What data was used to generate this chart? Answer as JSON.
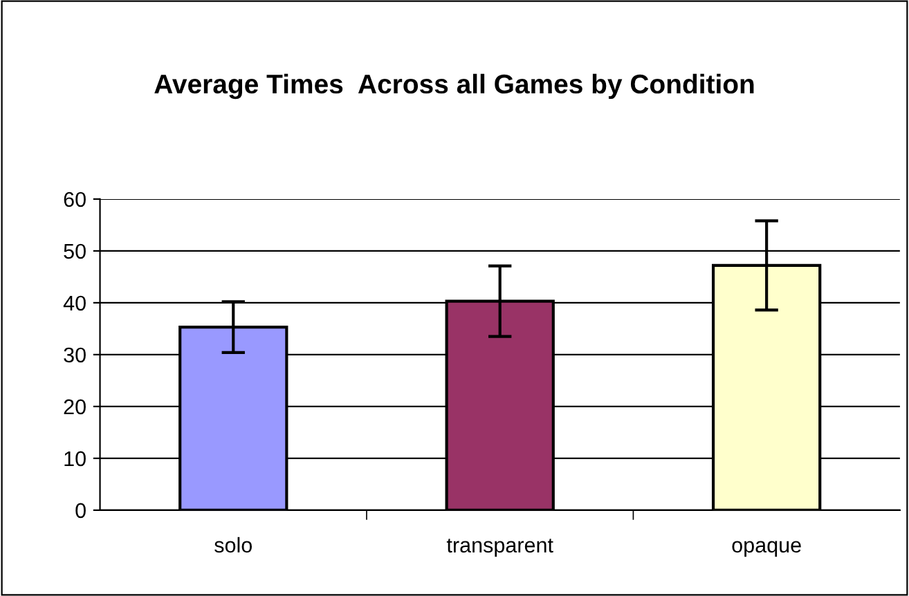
{
  "chart_data": {
    "type": "bar",
    "title": "Average Times  Across all Games by Condition",
    "categories": [
      "solo",
      "transparent",
      "opaque"
    ],
    "values": [
      35.3,
      40.3,
      47.2
    ],
    "colors": [
      "#9999ff",
      "#993366",
      "#ffffcc"
    ],
    "errors": [
      4.9,
      6.8,
      8.6
    ],
    "ylim": [
      0,
      60
    ],
    "yticks": [
      0,
      10,
      20,
      30,
      40,
      50,
      60
    ],
    "grid": "y",
    "legend": false
  }
}
